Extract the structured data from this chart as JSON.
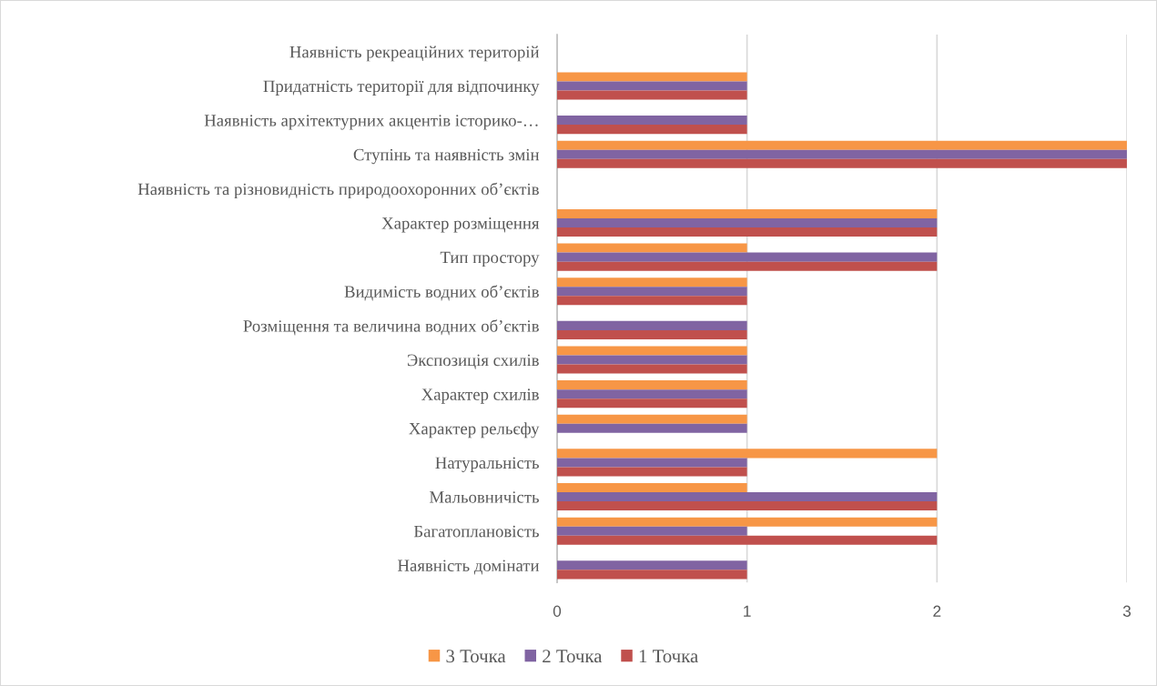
{
  "chart_data": {
    "type": "bar",
    "orientation": "horizontal",
    "categories": [
      "Наявність рекреаційних територій",
      "Придатність території для відпочинку",
      "Наявність архітектурних акцентів історико-…",
      "Ступінь та наявність змін",
      "Наявність та різновидність природоохоронних об’єктів",
      "Характер розміщення",
      "Тип простору",
      "Видимість водних об’єктів",
      "Розміщення та величина водних об’єктів",
      "Экспозиція схилів",
      "Характер схилів",
      "Характер рельєфу",
      "Натуральність",
      "Мальовничість",
      "Багатоплановість",
      "Наявність домінати"
    ],
    "series": [
      {
        "name": "3 Точка",
        "color": "#f79646",
        "values": [
          null,
          1,
          null,
          3,
          null,
          2,
          1,
          1,
          null,
          1,
          1,
          1,
          2,
          1,
          2,
          null
        ]
      },
      {
        "name": "2 Точка",
        "color": "#8064a2",
        "values": [
          null,
          1,
          1,
          3,
          null,
          2,
          2,
          1,
          1,
          1,
          1,
          1,
          1,
          2,
          1,
          1
        ]
      },
      {
        "name": "1 Точка",
        "color": "#c0504d",
        "values": [
          null,
          1,
          1,
          3,
          null,
          2,
          2,
          1,
          1,
          1,
          1,
          null,
          1,
          2,
          2,
          1
        ]
      }
    ],
    "xlim": [
      0,
      3
    ],
    "xticks": [
      0,
      1,
      2,
      3
    ],
    "grid": "x",
    "legend": "bottom"
  }
}
